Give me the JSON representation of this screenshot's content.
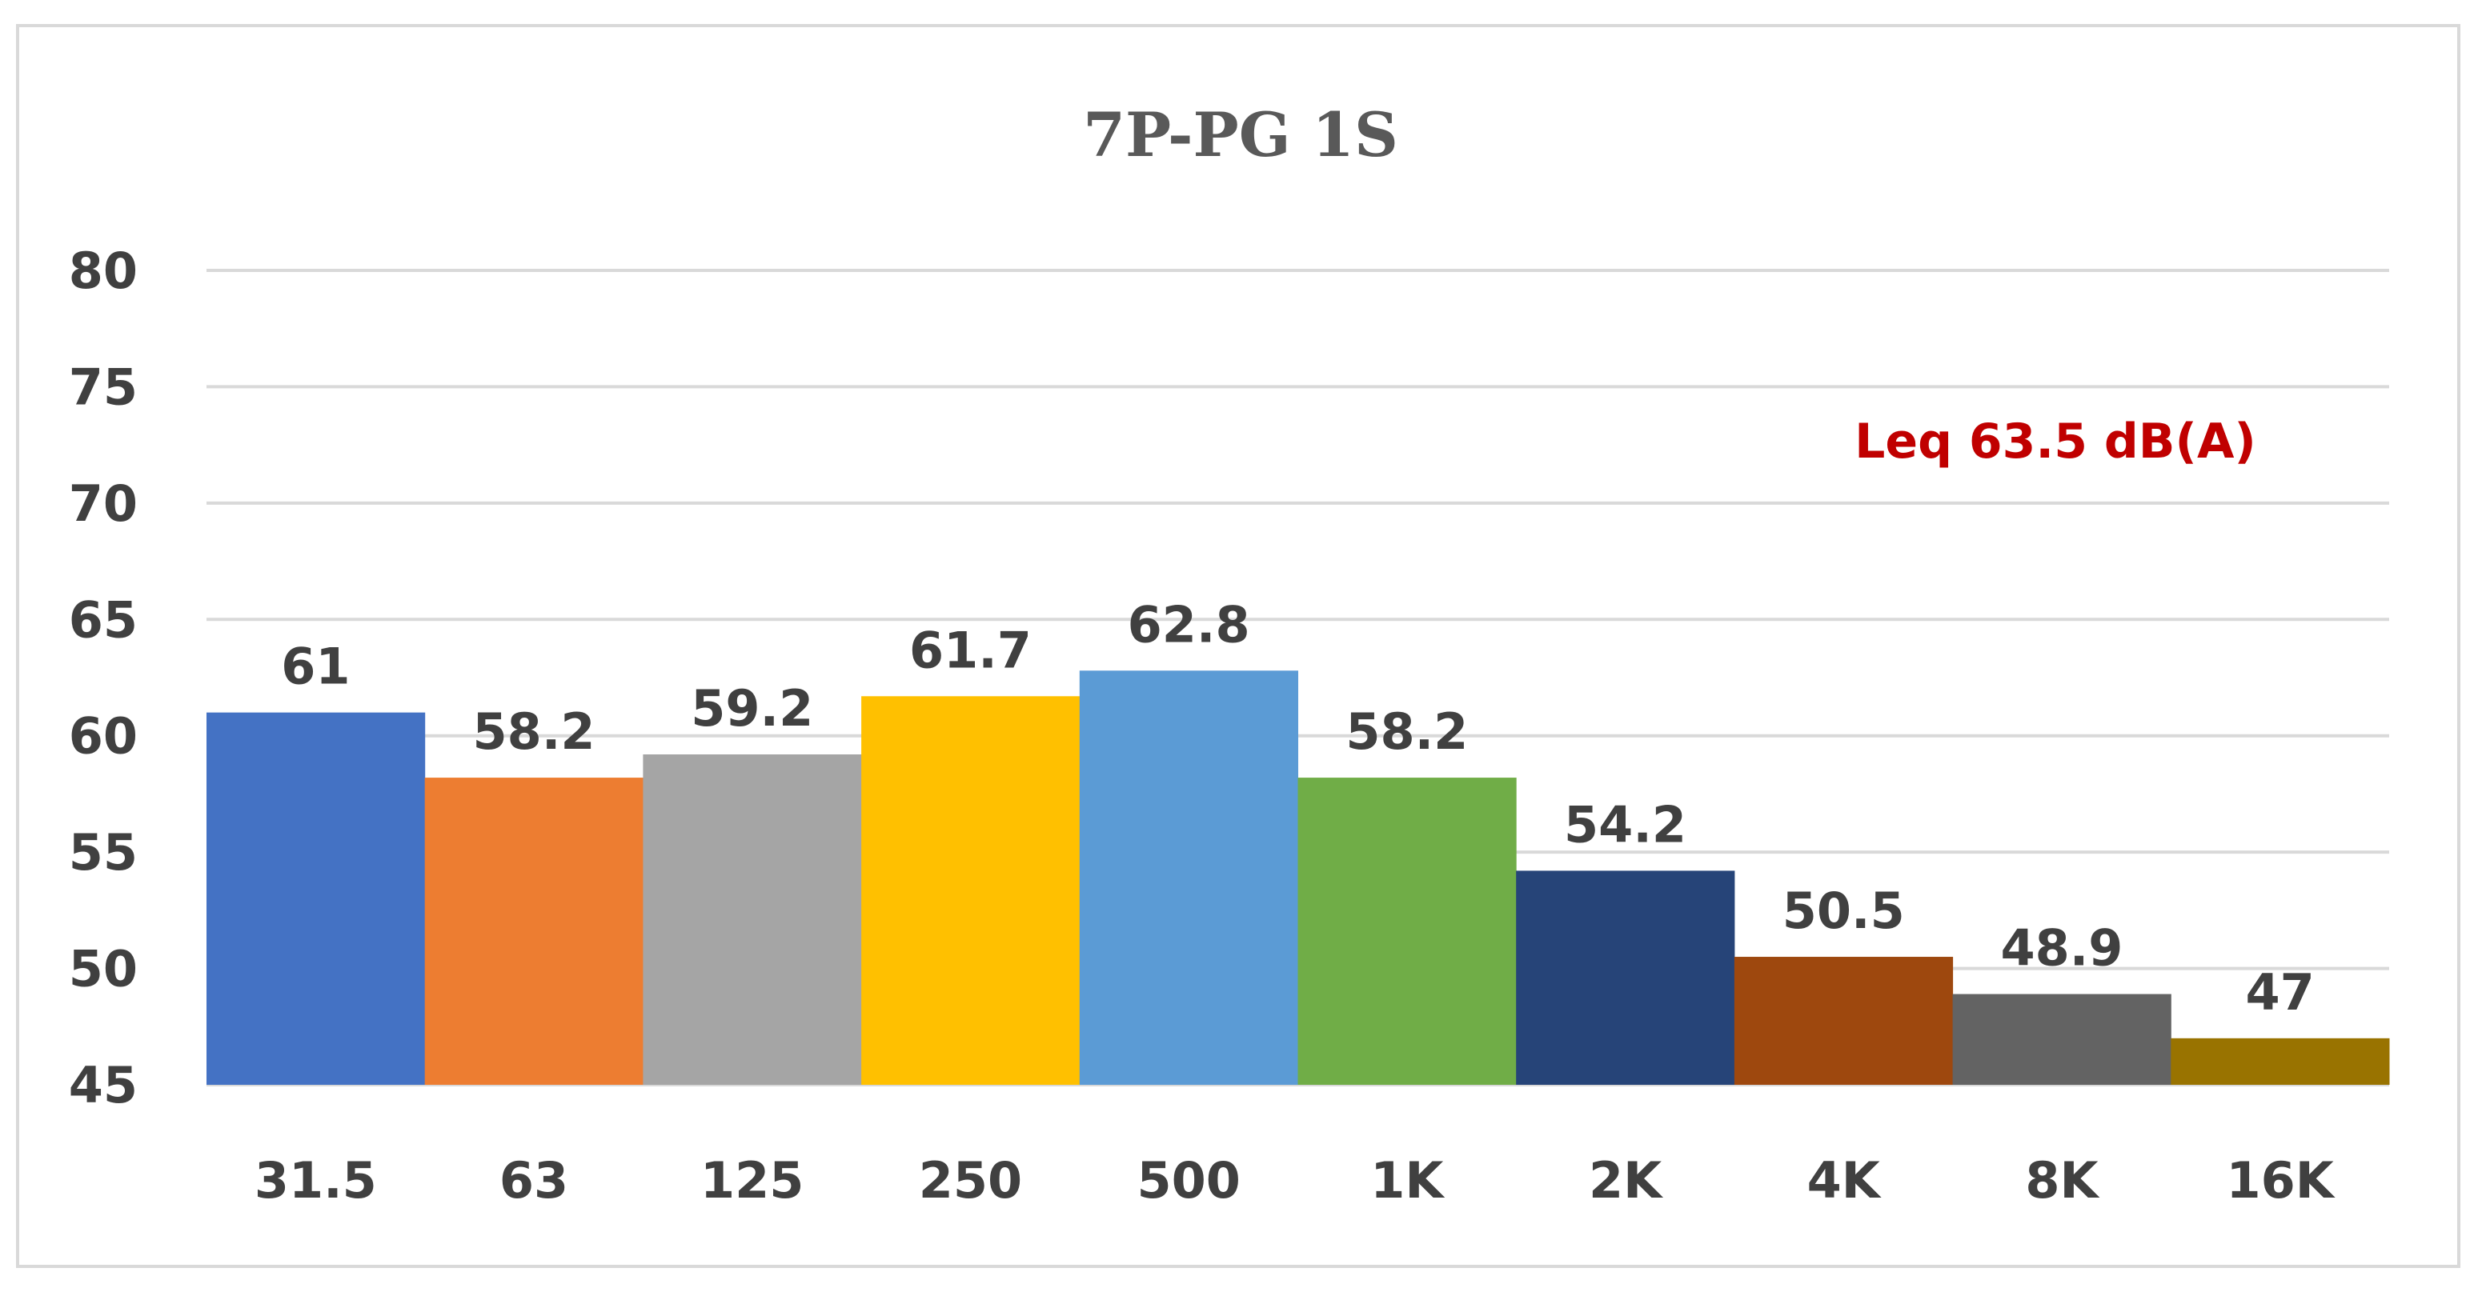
{
  "chart_data": {
    "type": "bar",
    "title": "7P-PG 1S",
    "annotation": "Leq 63.5 dB(A)",
    "categories": [
      "31.5",
      "63",
      "125",
      "250",
      "500",
      "1K",
      "2K",
      "4K",
      "8K",
      "16K"
    ],
    "values": [
      61,
      58.2,
      59.2,
      61.7,
      62.8,
      58.2,
      54.2,
      50.5,
      48.9,
      47
    ],
    "data_labels": [
      "61",
      "58.2",
      "59.2",
      "61.7",
      "62.8",
      "58.2",
      "54.2",
      "50.5",
      "48.9",
      "47"
    ],
    "colors": [
      "#4472c4",
      "#ed7d31",
      "#a5a5a5",
      "#ffc000",
      "#5b9bd5",
      "#70ad47",
      "#264478",
      "#9e480e",
      "#636363",
      "#997300"
    ],
    "ylim": [
      45,
      80
    ],
    "yticks": [
      45,
      50,
      55,
      60,
      65,
      70,
      75,
      80
    ],
    "grid": true,
    "xlabel": "",
    "ylabel": ""
  }
}
